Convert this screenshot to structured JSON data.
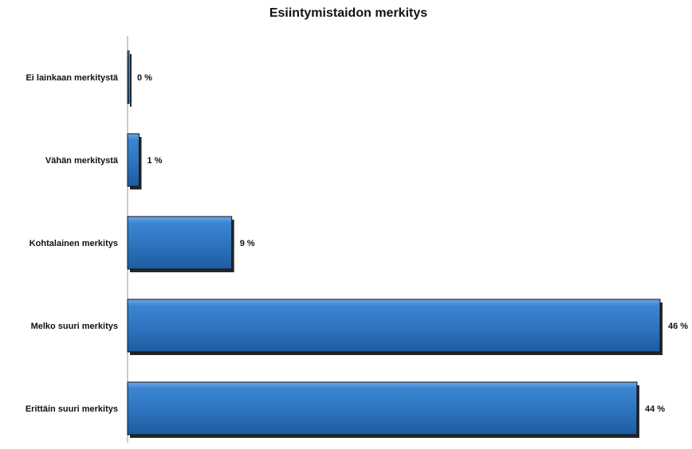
{
  "chart_data": {
    "type": "bar",
    "orientation": "horizontal",
    "title": "Esiintymistaidon merkitys",
    "categories": [
      "Ei lainkaan merkitystä",
      "Vähän merkitystä",
      "Kohtalainen merkitys",
      "Melko suuri merkitys",
      "Erittäin suuri merkitys"
    ],
    "values": [
      0,
      1,
      9,
      46,
      44
    ],
    "data_labels": [
      "0 %",
      "1 %",
      "9 %",
      "46 %",
      "44 %"
    ],
    "xlabel": "",
    "ylabel": "",
    "xlim": [
      0,
      46
    ],
    "grid": false,
    "legend": "none",
    "bar_color": "#2f78c4",
    "bar_edge_color": "#111111"
  }
}
